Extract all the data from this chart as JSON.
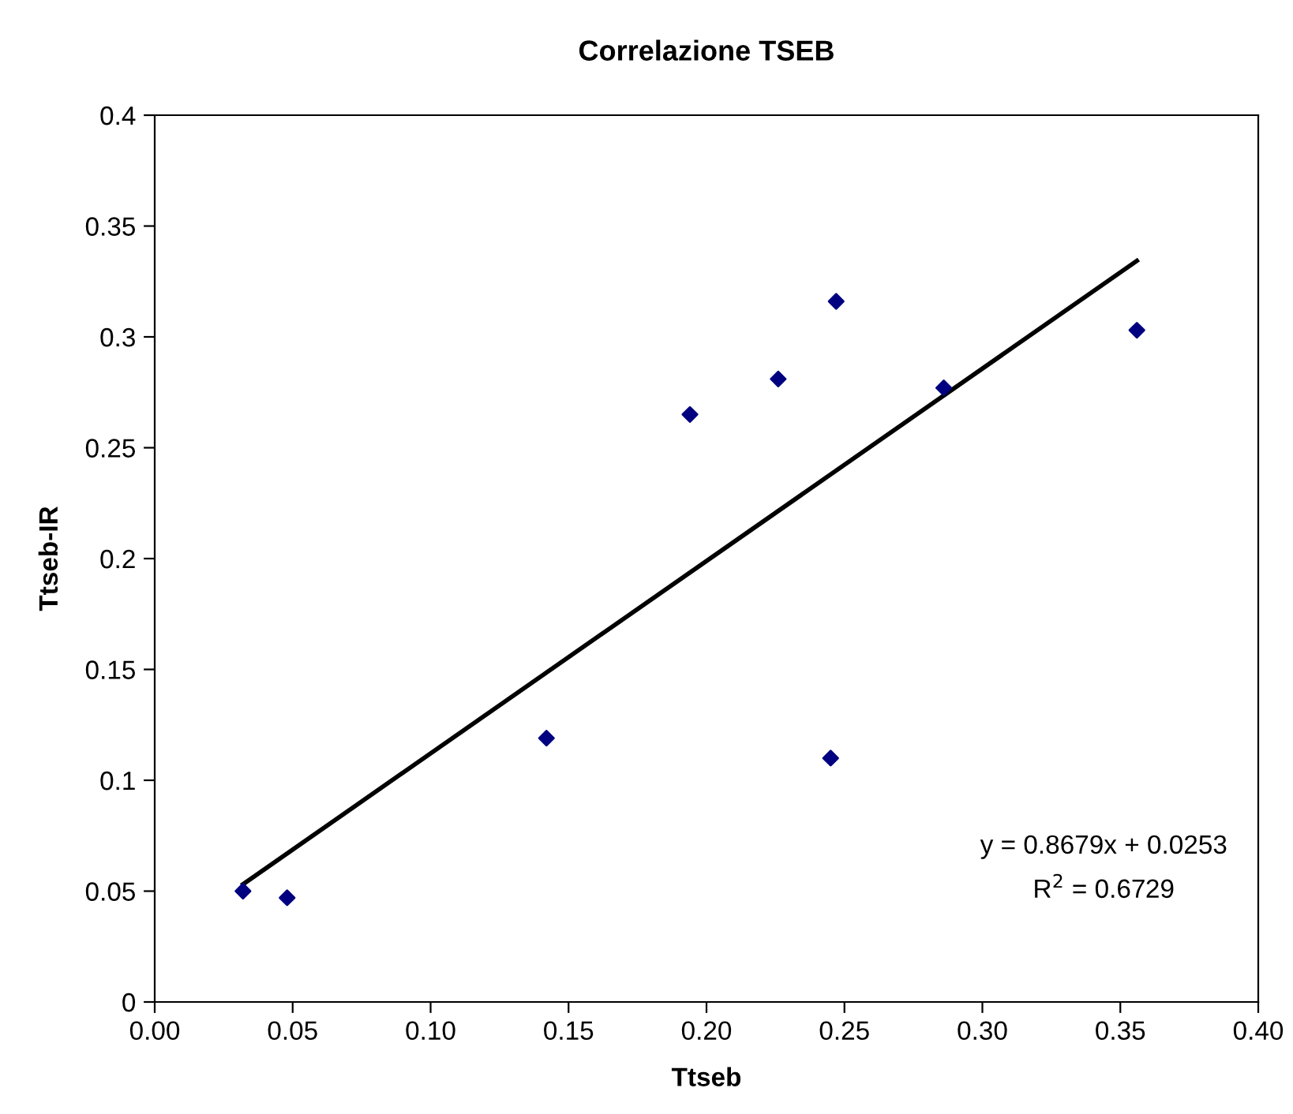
{
  "chart_data": {
    "type": "scatter",
    "title": "Correlazione TSEB",
    "xlabel": "Ttseb",
    "ylabel": "Ttseb-IR",
    "series": [
      {
        "color": "#000080",
        "marker": "diamond",
        "x": [
          0.032,
          0.048,
          0.142,
          0.194,
          0.226,
          0.247,
          0.245,
          0.286,
          0.356
        ],
        "values": [
          0.05,
          0.047,
          0.119,
          0.265,
          0.281,
          0.316,
          0.11,
          0.277,
          0.303
        ]
      },
      {
        "type": "line",
        "color": "#000000",
        "marker": "none",
        "line_style": "solid",
        "x": [
          0.032,
          0.356
        ],
        "values": [
          0.0531,
          0.3343
        ]
      }
    ],
    "annotations": [
      "y = 0.8679x + 0.0253",
      "R$^{2}$ = 0.6729"
    ],
    "xlim": [
      0,
      0.4
    ],
    "ylim": [
      0,
      0.4
    ],
    "xticks": [
      {
        "value": 0,
        "label": "0.00"
      },
      {
        "value": 0.05,
        "label": "0.05"
      },
      {
        "value": 0.1,
        "label": "0.10"
      },
      {
        "value": 0.15,
        "label": "0.15"
      },
      {
        "value": 0.2,
        "label": "0.20"
      },
      {
        "value": 0.25,
        "label": "0.25"
      },
      {
        "value": 0.3,
        "label": "0.30"
      },
      {
        "value": 0.35,
        "label": "0.35"
      },
      {
        "value": 0.4,
        "label": "0.40"
      }
    ],
    "yticks": [
      0,
      0.05,
      0.1,
      0.15,
      0.2,
      0.25,
      0.3,
      0.35,
      0.4
    ],
    "grid": false,
    "legend": false
  }
}
